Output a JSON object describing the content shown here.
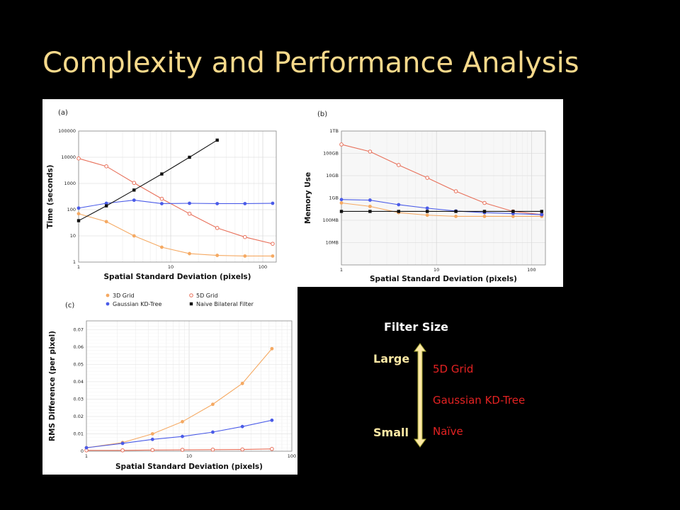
{
  "slide_title": "Complexity and Performance Analysis",
  "legend": {
    "entries": [
      {
        "name": "3D Grid",
        "marker": "filled-circle",
        "color": "#f5a962"
      },
      {
        "name": "5D Grid",
        "marker": "open-circle",
        "color": "#e8705a"
      },
      {
        "name": "Gaussian KD-Tree",
        "marker": "filled-circle",
        "color": "#4a5be8"
      },
      {
        "name": "Naive Bilateral Filter",
        "marker": "filled-square",
        "color": "#111111"
      }
    ]
  },
  "filter_size": {
    "title": "Filter Size",
    "large_label": "Large",
    "small_label": "Small",
    "items": [
      "5D Grid",
      "Gaussian KD-Tree",
      "Naïve"
    ],
    "item_color": "#e32222",
    "label_color": "#fde9a5",
    "arrow_color": "#fde9a5"
  },
  "chart_data": [
    {
      "panel_label": "(a)",
      "type": "line",
      "xlabel": "Spatial Standard Deviation (pixels)",
      "ylabel": "Time (seconds)",
      "xscale": "log",
      "yscale": "log",
      "xlim": [
        1,
        140
      ],
      "ylim": [
        1,
        100000
      ],
      "x_ticks": [
        1,
        10,
        100
      ],
      "x_tick_labels": [
        "1",
        "10",
        "100"
      ],
      "y_ticks": [
        1,
        10,
        100,
        1000,
        10000,
        100000
      ],
      "y_tick_labels": [
        "1",
        "10",
        "100",
        "1000",
        "10000",
        "100000"
      ],
      "grid": true,
      "series": [
        {
          "name": "3D Grid",
          "x": [
            1,
            2,
            4,
            8,
            16,
            32,
            64,
            128
          ],
          "y": [
            70,
            35,
            10,
            3.7,
            2.1,
            1.8,
            1.7,
            1.7
          ]
        },
        {
          "name": "5D Grid",
          "x": [
            1,
            2,
            4,
            8,
            16,
            32,
            64,
            128
          ],
          "y": [
            9000,
            4500,
            1050,
            260,
            70,
            20,
            9,
            5
          ]
        },
        {
          "name": "Gaussian KD-Tree",
          "x": [
            1,
            2,
            4,
            8,
            16,
            32,
            64,
            128
          ],
          "y": [
            115,
            175,
            230,
            170,
            175,
            170,
            170,
            175
          ]
        },
        {
          "name": "Naive Bilateral Filter",
          "x": [
            1,
            2,
            4,
            8,
            16,
            32
          ],
          "y": [
            38,
            140,
            560,
            2300,
            10000,
            45000
          ]
        }
      ]
    },
    {
      "panel_label": "(b)",
      "type": "line",
      "xlabel": "Spatial Standard Deviation (pixels)",
      "ylabel": "Memory Use",
      "xscale": "log",
      "yscale": "log",
      "xlim": [
        1,
        140
      ],
      "y_ticks": [
        10,
        100,
        1000,
        10000,
        100000,
        1000000
      ],
      "y_tick_labels": [
        "10MB",
        "100MB",
        "1GB",
        "10GB",
        "100GB",
        "1TB"
      ],
      "ylim_mb": [
        1,
        1000000
      ],
      "x_ticks": [
        1,
        10,
        100
      ],
      "x_tick_labels": [
        "1",
        "10",
        "100"
      ],
      "grid": true,
      "series": [
        {
          "name": "3D Grid",
          "x": [
            1,
            2,
            4,
            8,
            16,
            32,
            64,
            128
          ],
          "y": [
            600,
            420,
            220,
            170,
            150,
            150,
            150,
            150
          ]
        },
        {
          "name": "5D Grid",
          "x": [
            1,
            2,
            4,
            8,
            16,
            32,
            64,
            128
          ],
          "y": [
            250000,
            120000,
            30000,
            8000,
            2000,
            600,
            250,
            180
          ]
        },
        {
          "name": "Gaussian KD-Tree",
          "x": [
            1,
            2,
            4,
            8,
            16,
            32,
            64,
            128
          ],
          "y": [
            850,
            800,
            500,
            350,
            260,
            220,
            200,
            180
          ]
        },
        {
          "name": "Naive Bilateral Filter",
          "x": [
            1,
            2,
            4,
            8,
            16,
            32,
            64,
            128
          ],
          "y": [
            250,
            250,
            250,
            250,
            250,
            250,
            250,
            250
          ]
        }
      ]
    },
    {
      "panel_label": "(c)",
      "type": "line",
      "xlabel": "Spatial Standard Deviation (pixels)",
      "ylabel": "RMS Difference (per pixel)",
      "xscale": "log",
      "yscale": "linear",
      "xlim": [
        1,
        100
      ],
      "ylim": [
        0,
        0.075
      ],
      "x_ticks": [
        1,
        10,
        100
      ],
      "x_tick_labels": [
        "1",
        "10",
        "100"
      ],
      "y_ticks": [
        0,
        0.01,
        0.02,
        0.03,
        0.04,
        0.05,
        0.06,
        0.07
      ],
      "y_tick_labels": [
        "0",
        "0.01",
        "0.02",
        "0.03",
        "0.04",
        "0.05",
        "0.06",
        "0.07"
      ],
      "grid": true,
      "series": [
        {
          "name": "3D Grid",
          "x": [
            1,
            2.25,
            4.4,
            8.6,
            17,
            33,
            64
          ],
          "y": [
            0.002,
            0.005,
            0.01,
            0.017,
            0.027,
            0.039,
            0.059
          ]
        },
        {
          "name": "5D Grid",
          "x": [
            1,
            2.25,
            4.4,
            8.6,
            17,
            33,
            64
          ],
          "y": [
            0.0005,
            0.0005,
            0.0007,
            0.0008,
            0.0009,
            0.001,
            0.0013
          ]
        },
        {
          "name": "Gaussian KD-Tree",
          "x": [
            1,
            2.25,
            4.4,
            8.6,
            17,
            33,
            64
          ],
          "y": [
            0.002,
            0.0045,
            0.0068,
            0.0085,
            0.011,
            0.0142,
            0.0178
          ]
        }
      ]
    }
  ]
}
